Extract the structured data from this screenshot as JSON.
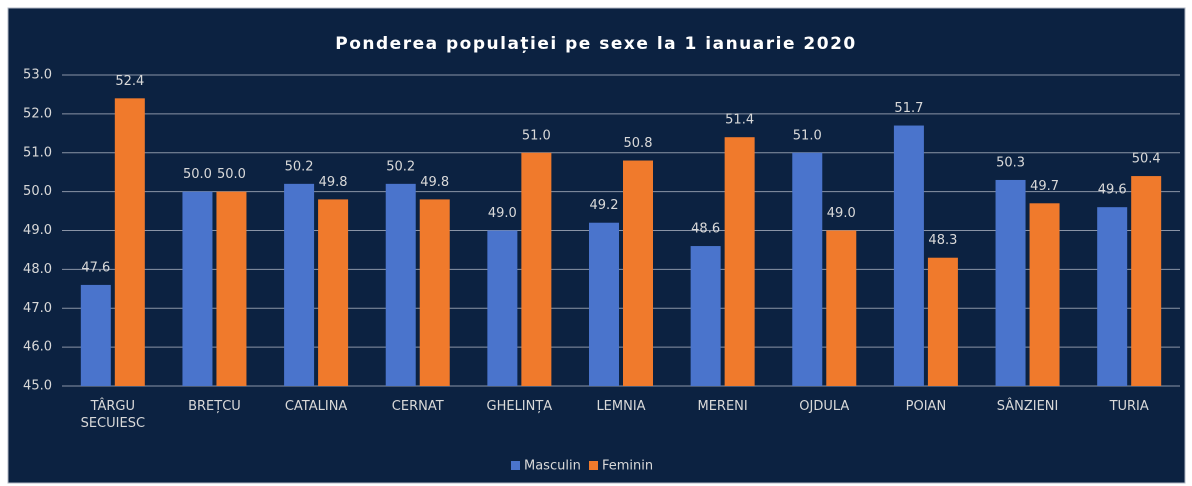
{
  "chart_data": {
    "type": "bar",
    "title": "Ponderea populației pe sexe la 1 ianuarie 2020",
    "categories": [
      "TÂRGU SECUIESC",
      "BREȚCU",
      "CATALINA",
      "CERNAT",
      "GHELINȚA",
      "LEMNIA",
      "MERENI",
      "OJDULA",
      "POIAN",
      "SÂNZIENI",
      "TURIA"
    ],
    "series": [
      {
        "name": "Masculin",
        "color": "#4a74cc",
        "values": [
          47.6,
          50.0,
          50.2,
          50.2,
          49.0,
          49.2,
          48.6,
          51.0,
          51.7,
          50.3,
          49.6
        ],
        "value_labels": [
          "47.6",
          "50.0",
          "50.2",
          "50.2",
          "49.0",
          "49.2",
          "48.6",
          "51.0",
          "51.7",
          "50.3",
          "49.6"
        ]
      },
      {
        "name": "Feminin",
        "color": "#f07a2c",
        "values": [
          52.4,
          50.0,
          49.8,
          49.8,
          51.0,
          50.8,
          51.4,
          49.0,
          48.3,
          49.7,
          50.4
        ],
        "value_labels": [
          "52.4",
          "50.0",
          "49.8",
          "49.8",
          "51.0",
          "50.8",
          "51.4",
          "49.0",
          "48.3",
          "49.7",
          "50.4"
        ]
      }
    ],
    "ylim": [
      45,
      53
    ],
    "yticks": [
      {
        "value": 45,
        "label": "45.0"
      },
      {
        "value": 46,
        "label": "46.0"
      },
      {
        "value": 47,
        "label": "47.0"
      },
      {
        "value": 48,
        "label": "48.0"
      },
      {
        "value": 49,
        "label": "49.0"
      },
      {
        "value": 50,
        "label": "50.0"
      },
      {
        "value": 51,
        "label": "51.0"
      },
      {
        "value": 52,
        "label": "52.0"
      },
      {
        "value": 53,
        "label": "53.0"
      }
    ],
    "grid": true,
    "legend": "bottom"
  }
}
